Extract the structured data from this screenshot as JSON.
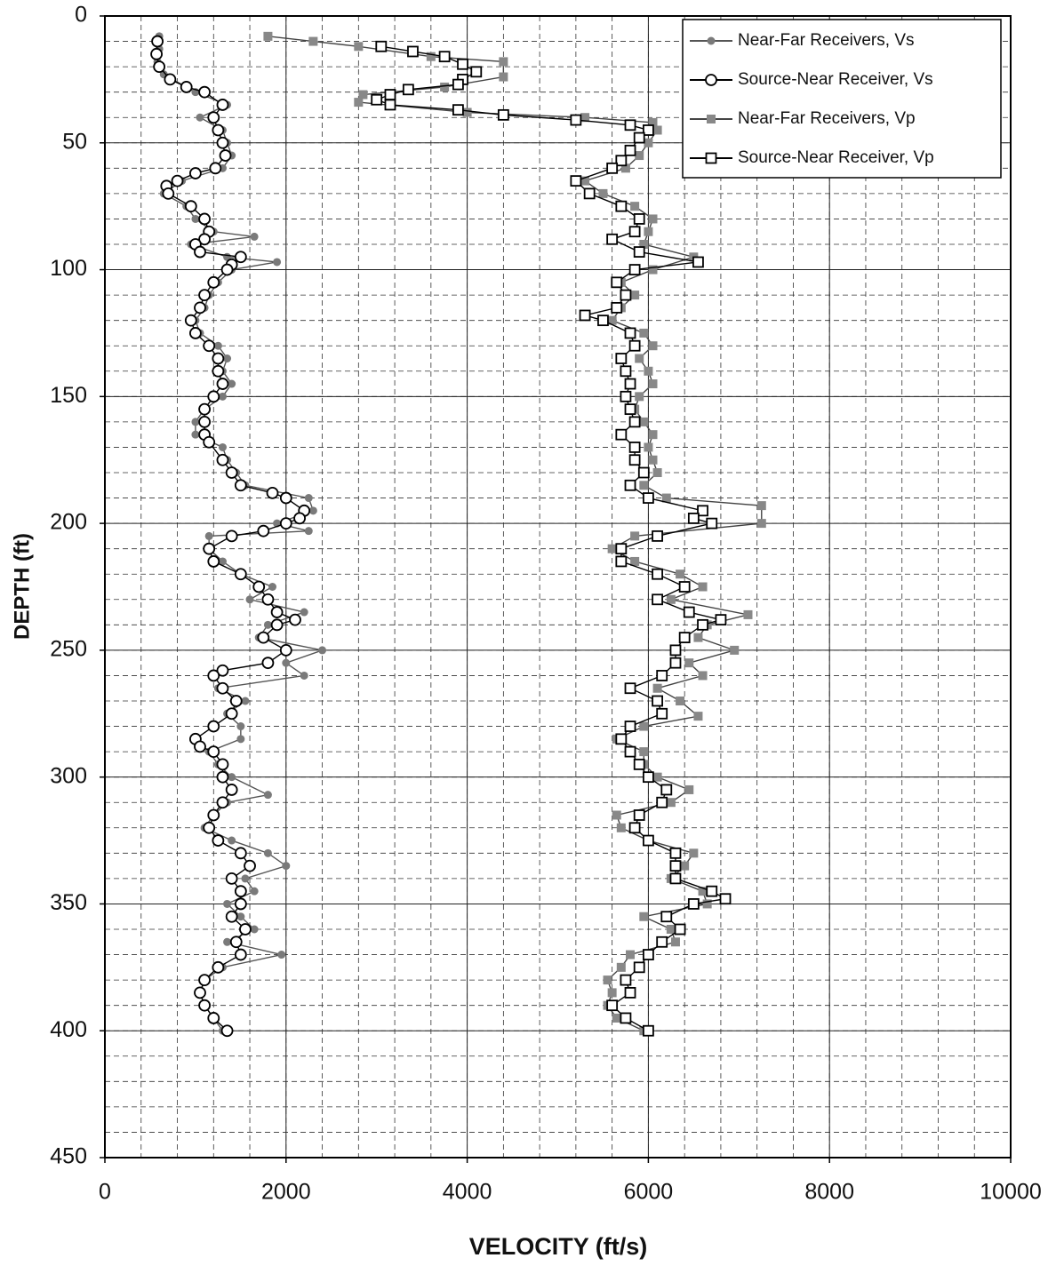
{
  "chart_data": {
    "type": "scatter",
    "x_label": "VELOCITY (ft/s)",
    "y_label": "DEPTH (ft)",
    "xlim": [
      0,
      10000
    ],
    "xticks": [
      0,
      2000,
      4000,
      6000,
      8000,
      10000
    ],
    "ylim": [
      0,
      450
    ],
    "yticks": [
      0,
      50,
      100,
      150,
      200,
      250,
      300,
      350,
      400,
      450
    ],
    "y_inverted": true,
    "grid": true,
    "minor_grid": {
      "x": 400,
      "y": 10
    },
    "legend": "top-right",
    "series": [
      {
        "name": "Near-Far Receivers, Vs",
        "marker": "circle",
        "color": "#7a7a7a",
        "line_color": "#555555",
        "y": [
          8,
          13,
          18,
          23,
          30,
          35,
          40,
          45,
          50,
          55,
          60,
          65,
          70,
          75,
          80,
          85,
          87,
          90,
          95,
          97,
          100,
          105,
          110,
          115,
          120,
          125,
          130,
          135,
          140,
          145,
          150,
          155,
          160,
          165,
          170,
          175,
          180,
          185,
          190,
          195,
          200,
          203,
          205,
          210,
          215,
          220,
          225,
          230,
          235,
          240,
          245,
          250,
          255,
          260,
          265,
          270,
          275,
          280,
          285,
          290,
          295,
          300,
          307,
          310,
          315,
          320,
          325,
          330,
          335,
          340,
          345,
          350,
          355,
          360,
          365,
          370,
          375,
          380,
          385,
          390,
          395,
          400
        ],
        "x": [
          600,
          600,
          580,
          650,
          1000,
          1350,
          1050,
          1300,
          1350,
          1400,
          1300,
          850,
          650,
          900,
          1000,
          1200,
          1650,
          950,
          1350,
          1900,
          1400,
          1250,
          1150,
          1100,
          1000,
          1050,
          1250,
          1350,
          1300,
          1400,
          1300,
          1100,
          1000,
          1000,
          1300,
          1350,
          1450,
          1550,
          2250,
          2300,
          1900,
          2250,
          1150,
          1150,
          1300,
          1500,
          1850,
          1600,
          2200,
          1800,
          1700,
          2400,
          2000,
          2200,
          1250,
          1550,
          1350,
          1500,
          1500,
          1150,
          1250,
          1400,
          1800,
          1350,
          1200,
          1100,
          1400,
          1800,
          2000,
          1550,
          1650,
          1350,
          1500,
          1650,
          1350,
          1950,
          1300,
          1100,
          1050,
          1100,
          1200,
          1300
        ]
      },
      {
        "name": "Source-Near Receiver, Vs",
        "marker": "open-circle",
        "color": "#000000",
        "line_color": "#000000",
        "y": [
          10,
          15,
          20,
          25,
          28,
          30,
          35,
          40,
          45,
          50,
          55,
          60,
          62,
          65,
          67,
          70,
          75,
          80,
          85,
          88,
          90,
          93,
          95,
          98,
          100,
          105,
          110,
          115,
          120,
          125,
          130,
          135,
          140,
          145,
          150,
          155,
          160,
          165,
          168,
          175,
          180,
          185,
          188,
          190,
          195,
          198,
          200,
          203,
          205,
          210,
          215,
          220,
          225,
          230,
          235,
          238,
          240,
          245,
          250,
          255,
          258,
          260,
          265,
          270,
          275,
          280,
          285,
          288,
          290,
          295,
          300,
          305,
          310,
          315,
          320,
          325,
          330,
          335,
          340,
          345,
          350,
          355,
          360,
          365,
          370,
          375,
          380,
          385,
          390,
          395,
          400
        ],
        "x": [
          580,
          570,
          600,
          720,
          900,
          1100,
          1300,
          1200,
          1250,
          1300,
          1330,
          1220,
          1000,
          800,
          680,
          700,
          950,
          1100,
          1150,
          1100,
          1000,
          1050,
          1500,
          1400,
          1350,
          1200,
          1100,
          1050,
          950,
          1000,
          1150,
          1250,
          1250,
          1300,
          1200,
          1100,
          1100,
          1100,
          1150,
          1300,
          1400,
          1500,
          1850,
          2000,
          2200,
          2150,
          2000,
          1750,
          1400,
          1150,
          1200,
          1500,
          1700,
          1800,
          1900,
          2100,
          1900,
          1750,
          2000,
          1800,
          1300,
          1200,
          1300,
          1450,
          1400,
          1200,
          1000,
          1050,
          1200,
          1300,
          1300,
          1400,
          1300,
          1200,
          1150,
          1250,
          1500,
          1600,
          1400,
          1500,
          1500,
          1400,
          1550,
          1450,
          1500,
          1250,
          1100,
          1050,
          1100,
          1200,
          1350
        ]
      },
      {
        "name": "Near-Far Receivers, Vp",
        "marker": "square",
        "color": "#888888",
        "line_color": "#444444",
        "y": [
          8,
          10,
          12,
          16,
          18,
          24,
          28,
          31,
          34,
          38,
          40,
          42,
          45,
          50,
          55,
          60,
          65,
          70,
          75,
          80,
          85,
          90,
          95,
          100,
          105,
          110,
          115,
          120,
          125,
          130,
          135,
          140,
          145,
          150,
          155,
          160,
          165,
          170,
          175,
          180,
          185,
          190,
          193,
          200,
          205,
          210,
          215,
          220,
          225,
          230,
          236,
          240,
          245,
          250,
          255,
          260,
          265,
          270,
          276,
          280,
          285,
          290,
          295,
          300,
          305,
          310,
          315,
          320,
          325,
          330,
          335,
          340,
          345,
          350,
          355,
          360,
          365,
          370,
          375,
          380,
          385,
          390,
          395,
          400
        ],
        "x": [
          1800,
          2300,
          2800,
          3600,
          4400,
          4400,
          3750,
          2850,
          2800,
          4000,
          5300,
          6050,
          6100,
          6000,
          5900,
          5750,
          5300,
          5500,
          5850,
          6050,
          6000,
          5950,
          6500,
          6050,
          5700,
          5850,
          5700,
          5600,
          5950,
          6050,
          5900,
          6000,
          6050,
          5900,
          5850,
          5950,
          6050,
          6000,
          6050,
          6100,
          5950,
          6200,
          7250,
          7250,
          5850,
          5600,
          5850,
          6350,
          6600,
          6250,
          7100,
          6650,
          6550,
          6950,
          6450,
          6600,
          6100,
          6350,
          6550,
          5950,
          5650,
          5950,
          5950,
          6100,
          6450,
          6250,
          5650,
          5700,
          6000,
          6500,
          6400,
          6250,
          6600,
          6650,
          5950,
          6250,
          6300,
          5800,
          5700,
          5550,
          5600,
          5550,
          5650,
          5950
        ]
      },
      {
        "name": "Source-Near Receiver, Vp",
        "marker": "open-square",
        "color": "#000000",
        "line_color": "#000000",
        "y": [
          12,
          14,
          16,
          19,
          22,
          25,
          27,
          29,
          31,
          33,
          35,
          37,
          39,
          41,
          43,
          45,
          48,
          53,
          57,
          60,
          65,
          70,
          75,
          80,
          85,
          88,
          93,
          97,
          100,
          105,
          110,
          115,
          118,
          120,
          125,
          130,
          135,
          140,
          145,
          150,
          155,
          160,
          165,
          170,
          175,
          180,
          185,
          190,
          195,
          198,
          200,
          205,
          210,
          215,
          220,
          225,
          230,
          235,
          238,
          240,
          245,
          250,
          255,
          260,
          265,
          270,
          275,
          280,
          285,
          290,
          295,
          300,
          305,
          310,
          315,
          320,
          325,
          330,
          335,
          340,
          345,
          348,
          350,
          355,
          360,
          365,
          370,
          375,
          380,
          385,
          390,
          395,
          400
        ],
        "x": [
          3050,
          3400,
          3750,
          3950,
          4100,
          3950,
          3900,
          3350,
          3150,
          3000,
          3150,
          3900,
          4400,
          5200,
          5800,
          6000,
          5900,
          5800,
          5700,
          5600,
          5200,
          5350,
          5700,
          5900,
          5850,
          5600,
          5900,
          6550,
          5850,
          5650,
          5750,
          5650,
          5300,
          5500,
          5800,
          5850,
          5700,
          5750,
          5800,
          5750,
          5800,
          5850,
          5700,
          5850,
          5850,
          5950,
          5800,
          6000,
          6600,
          6500,
          6700,
          6100,
          5700,
          5700,
          6100,
          6400,
          6100,
          6450,
          6800,
          6600,
          6400,
          6300,
          6300,
          6150,
          5800,
          6100,
          6150,
          5800,
          5700,
          5800,
          5900,
          6000,
          6200,
          6150,
          5900,
          5850,
          6000,
          6300,
          6300,
          6300,
          6700,
          6850,
          6500,
          6200,
          6350,
          6150,
          6000,
          5900,
          5750,
          5800,
          5600,
          5750,
          6000
        ]
      }
    ]
  }
}
